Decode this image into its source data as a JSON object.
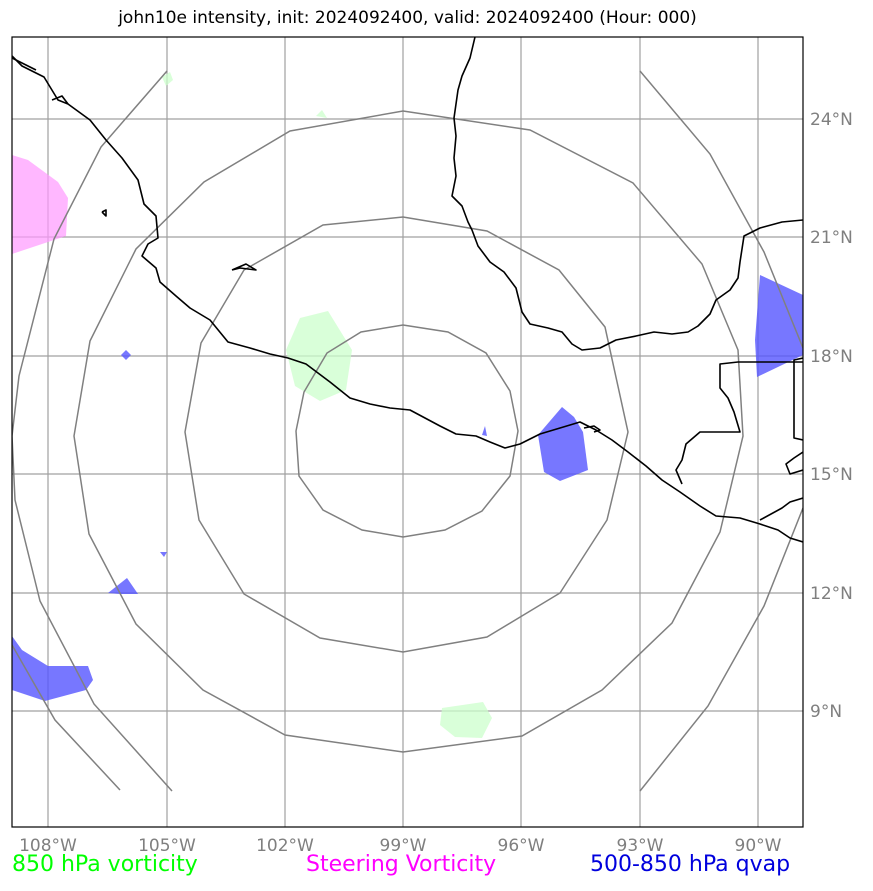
{
  "title": "john10e intensity, init: 2024092400, valid: 2024092400 (Hour: 000)",
  "axes": {
    "lon_ticks": [
      "108°W",
      "105°W",
      "102°W",
      "99°W",
      "96°W",
      "93°W",
      "90°W"
    ],
    "lat_ticks": [
      "24°N",
      "21°N",
      "18°N",
      "15°N",
      "12°N",
      "9°N"
    ]
  },
  "legend": {
    "vorticity_850": {
      "label": "850 hPa vorticity",
      "color": "#00ff00"
    },
    "steering_vorticity": {
      "label": "Steering Vorticity",
      "color": "#ff00ff"
    },
    "qvap": {
      "label": "500-850 hPa qvap",
      "color": "#0000dd"
    }
  },
  "colors": {
    "range_rings": "#808080",
    "gridlines": "#a0a0a0",
    "coastline": "#000000",
    "vorticity_fill": "#ccffcc",
    "steering_fill": "#ffaaff",
    "qvap_fill": "#6666ff"
  }
}
